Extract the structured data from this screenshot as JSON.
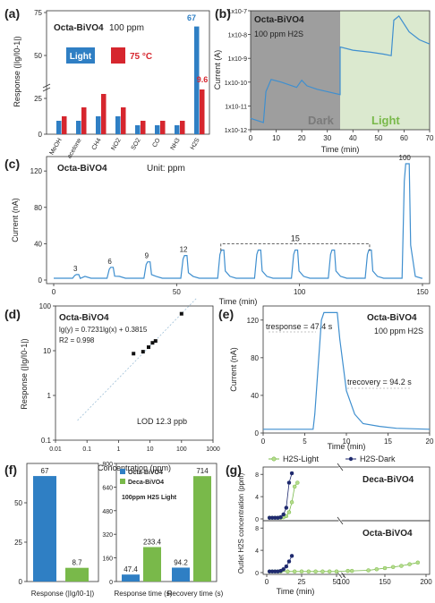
{
  "panels": {
    "a": {
      "letter": "(a)"
    },
    "b": {
      "letter": "(b)"
    },
    "c": {
      "letter": "(c)"
    },
    "d": {
      "letter": "(d)"
    },
    "e": {
      "letter": "(e)"
    },
    "f": {
      "letter": "(f)"
    },
    "g": {
      "letter": "(g)"
    }
  },
  "colors": {
    "blue": "#2f7fc4",
    "red": "#d6262e",
    "green": "#79b94a",
    "navy": "#1f2a6e",
    "dark_gray": "#9e9e9e",
    "light_green": "#dbe9cf",
    "line_blue": "#3f8fcf"
  },
  "chart_data": [
    {
      "id": "a",
      "type": "bar",
      "title": "Octa-BiVO4",
      "subtitle": "100 ppm",
      "ylabel": "Response (|Ig/I0-1|)",
      "ylim": [
        0,
        75
      ],
      "yticks": [
        "0",
        "25",
        "50",
        "75"
      ],
      "categories": [
        "MeOH",
        "acetone",
        "CH4",
        "NO2",
        "SO2",
        "CO",
        "NH3",
        "H2S"
      ],
      "series": [
        {
          "name": "Light",
          "color": "#2f7fc4",
          "values": [
            0.3,
            0.3,
            0.4,
            0.4,
            0.2,
            0.2,
            0.2,
            67
          ]
        },
        {
          "name": "75 °C",
          "color": "#d6262e",
          "values": [
            0.4,
            0.6,
            0.9,
            0.6,
            0.3,
            0.3,
            0.3,
            9.6
          ]
        }
      ],
      "labels": {
        "h2s_light": "67",
        "h2s_75c": "9.6"
      }
    },
    {
      "id": "b",
      "type": "line",
      "title": "Octa-BiVO4",
      "subtitle": "100 ppm  H2S",
      "xlabel": "Time (min)",
      "ylabel": "Current (A)",
      "xlim": [
        0,
        70
      ],
      "xticks": [
        "0",
        "10",
        "20",
        "30",
        "40",
        "50",
        "60",
        "70"
      ],
      "yscale": "log",
      "ylim": [
        1e-12,
        1e-07
      ],
      "yticks": [
        "1x10-12",
        "1x10-11",
        "1x10-10",
        "1x10-9",
        "1x10-8",
        "1x10-7"
      ],
      "regions": [
        "Dark",
        "Light"
      ],
      "dark_x": [
        0,
        5,
        6,
        8,
        12,
        18,
        20,
        22,
        26,
        30,
        35
      ],
      "dark_y": [
        3e-12,
        2e-12,
        4e-11,
        1.3e-10,
        1e-10,
        6e-11,
        1.2e-10,
        7e-11,
        5e-11,
        4e-11,
        3e-11
      ],
      "light_x": [
        35,
        40,
        47,
        52,
        55,
        56,
        58,
        62,
        66,
        70
      ],
      "light_y": [
        3e-09,
        2.2e-09,
        1.8e-09,
        1.5e-09,
        1.3e-09,
        4e-08,
        6e-08,
        1.3e-08,
        6e-09,
        4e-09
      ]
    },
    {
      "id": "c",
      "type": "line",
      "title": "Octa-BiVO4",
      "note": "Unit: ppm",
      "xlabel": "Time (min)",
      "ylabel": "Current (nA)",
      "xlim": [
        0,
        150
      ],
      "xticks": [
        "0",
        "50",
        "100",
        "150"
      ],
      "ylim": [
        0,
        130
      ],
      "yticks": [
        "0",
        "40",
        "80",
        "120"
      ],
      "pulses": [
        {
          "t": 8,
          "peak": 6,
          "label": "3"
        },
        {
          "t": 22,
          "peak": 14,
          "label": "6"
        },
        {
          "t": 37,
          "peak": 20,
          "label": "9"
        },
        {
          "t": 52,
          "peak": 27,
          "label": "12"
        },
        {
          "t": 67,
          "peak": 33,
          "label": ""
        },
        {
          "t": 82,
          "peak": 33,
          "label": ""
        },
        {
          "t": 97,
          "peak": 33,
          "label": ""
        },
        {
          "t": 112,
          "peak": 33,
          "label": ""
        },
        {
          "t": 127,
          "peak": 33,
          "label": ""
        },
        {
          "t": 142,
          "peak": 128,
          "label": "100"
        }
      ],
      "bracket_label": "15"
    },
    {
      "id": "d",
      "type": "scatter",
      "title": "Octa-BiVO4",
      "equation": "lg(y) = 0.7231lg(x) + 0.3815",
      "r2": "R2 = 0.998",
      "lod": "LOD 12.3 ppb",
      "xlabel": "Concentration (ppm)",
      "ylabel": "Response (|Ig/I0-1|)",
      "xscale": "log",
      "xlim": [
        0.01,
        1000
      ],
      "xticks": [
        "0.01",
        "0.1",
        "1",
        "10",
        "100",
        "1000"
      ],
      "yscale": "log",
      "ylim": [
        0.1,
        100
      ],
      "yticks": [
        "0.1",
        "1",
        "10",
        "100"
      ],
      "x": [
        3,
        6,
        9,
        12,
        15,
        100
      ],
      "y": [
        8.6,
        9.5,
        12,
        15,
        16.5,
        67
      ]
    },
    {
      "id": "e",
      "type": "line",
      "title": "Octa-BiVO4",
      "subtitle": "100 ppm  H2S",
      "t_response": "tresponse = 47.4 s",
      "t_recovery": "trecovery = 94.2 s",
      "xlabel": "Time (min)",
      "ylabel": "Current (nA)",
      "xlim": [
        0,
        20
      ],
      "xticks": [
        "0",
        "5",
        "10",
        "15",
        "20"
      ],
      "ylim": [
        0,
        135
      ],
      "yticks": [
        "0",
        "40",
        "80",
        "120"
      ],
      "x": [
        0,
        6,
        6.2,
        7,
        7.3,
        8.9,
        9.2,
        10,
        11,
        12,
        14,
        16,
        20
      ],
      "y": [
        4,
        4,
        20,
        120,
        128,
        128,
        100,
        45,
        20,
        10,
        7,
        5,
        4
      ]
    },
    {
      "id": "f1",
      "type": "bar",
      "categories": [
        "Response (|Ig/I0-1|)"
      ],
      "ylim": [
        0,
        75
      ],
      "yticks": [
        "0",
        "25",
        "50"
      ],
      "series": [
        {
          "name": "Octa-BiVO4",
          "color": "#2f7fc4",
          "values": [
            67
          ]
        },
        {
          "name": "Deca-BiVO4",
          "color": "#79b94a",
          "values": [
            8.7
          ]
        }
      ],
      "labels": [
        "67",
        "8.7"
      ]
    },
    {
      "id": "f2",
      "type": "bar",
      "legend": [
        "Octa-BiVO4",
        "Deca-BiVO4"
      ],
      "note": "100ppm H2S Light",
      "categories": [
        "Response time (s)",
        "Recovery time (s)"
      ],
      "ylim": [
        0,
        800
      ],
      "yticks": [
        "0",
        "160",
        "320",
        "480",
        "640",
        "800"
      ],
      "series": [
        {
          "name": "Octa-BiVO4",
          "color": "#2f7fc4",
          "values": [
            47.4,
            94.2
          ]
        },
        {
          "name": "Deca-BiVO4",
          "color": "#79b94a",
          "values": [
            233.4,
            714
          ]
        }
      ],
      "labels": [
        "47.4",
        "233.4",
        "94.2",
        "714"
      ]
    },
    {
      "id": "g",
      "type": "line",
      "legend": [
        "H2S-Light",
        "H2S-Dark"
      ],
      "ylabel": "Outlet H2S concentration (ppm)",
      "xlabel": "Time (min)",
      "xticks": [
        "0",
        "25",
        "50",
        "100",
        "150",
        "200"
      ],
      "yticks": [
        "0",
        "4",
        "8"
      ],
      "top_title": "Deca-BiVO4",
      "bottom_title": "Octa-BiVO4",
      "deca_light": {
        "x": [
          2,
          4,
          6,
          8,
          10,
          12,
          14,
          16,
          18,
          20,
          22
        ],
        "y": [
          0.2,
          0.2,
          0.2,
          0.2,
          0.2,
          0.3,
          0.5,
          1.2,
          3.0,
          5.8,
          6.5
        ]
      },
      "deca_dark": {
        "x": [
          2,
          4,
          6,
          8,
          10,
          12,
          14,
          16,
          18
        ],
        "y": [
          0.2,
          0.2,
          0.2,
          0.2,
          0.3,
          0.8,
          2.0,
          6.5,
          8.2
        ]
      },
      "octa_light": {
        "x": [
          2,
          4,
          6,
          8,
          10,
          15,
          20,
          25,
          30,
          35,
          40,
          45,
          50,
          105,
          110,
          130,
          140,
          150,
          160,
          170,
          180,
          190
        ],
        "y": [
          0.2,
          0.2,
          0.2,
          0.2,
          0.2,
          0.2,
          0.2,
          0.2,
          0.2,
          0.2,
          0.2,
          0.2,
          0.2,
          0.3,
          0.3,
          0.4,
          0.6,
          0.8,
          1.0,
          1.2,
          1.5,
          1.8
        ]
      },
      "octa_dark": {
        "x": [
          2,
          4,
          6,
          8,
          10,
          12,
          14,
          16,
          18
        ],
        "y": [
          0.2,
          0.2,
          0.2,
          0.2,
          0.3,
          0.6,
          1.1,
          2.0,
          3.0
        ]
      }
    }
  ]
}
